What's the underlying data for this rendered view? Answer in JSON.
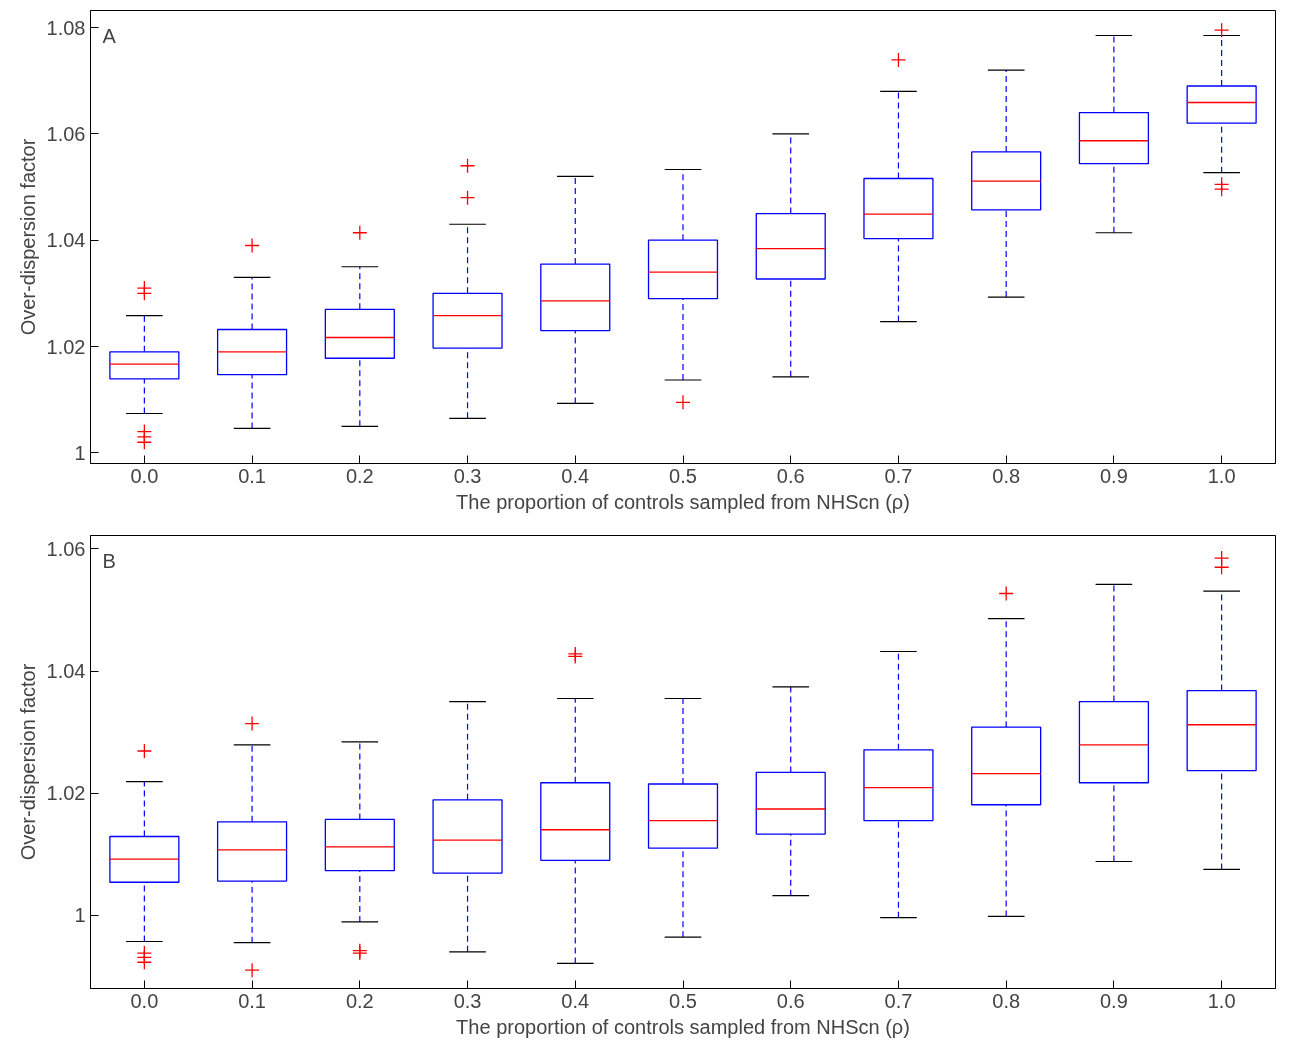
{
  "chart_data": [
    {
      "type": "box",
      "annotations": [
        "A"
      ],
      "xlabel": "The proportion of controls sampled from NHScn (ρ)",
      "ylabel": "Over-dispersion factor",
      "marker": "cross",
      "categories": [
        "0.0",
        "0.1",
        "0.2",
        "0.3",
        "0.4",
        "0.5",
        "0.6",
        "0.7",
        "0.8",
        "0.9",
        "1.0"
      ],
      "ylim": [
        0.998,
        1.0832
      ],
      "yticks": [
        1,
        1.02,
        1.04,
        1.06,
        1.08
      ],
      "boxes": [
        {
          "low": 1.0074,
          "q1": 1.0139,
          "median": 1.0167,
          "q3": 1.019,
          "high": 1.0258,
          "outliers": [
            1.031,
            1.03,
            1.004,
            1.003,
            1.002
          ]
        },
        {
          "low": 1.0046,
          "q1": 1.0147,
          "median": 1.019,
          "q3": 1.0232,
          "high": 1.033,
          "outliers": [
            1.039
          ]
        },
        {
          "low": 1.005,
          "q1": 1.0178,
          "median": 1.0217,
          "q3": 1.027,
          "high": 1.035,
          "outliers": [
            1.0414
          ]
        },
        {
          "low": 1.0065,
          "q1": 1.0197,
          "median": 1.0258,
          "q3": 1.03,
          "high": 1.043,
          "outliers": [
            1.054,
            1.048
          ]
        },
        {
          "low": 1.0093,
          "q1": 1.023,
          "median": 1.0286,
          "q3": 1.0355,
          "high": 1.052
        },
        {
          "low": 1.0137,
          "q1": 1.029,
          "median": 1.034,
          "q3": 1.04,
          "high": 1.0533,
          "outliers": [
            1.0095
          ]
        },
        {
          "low": 1.0143,
          "q1": 1.0327,
          "median": 1.0384,
          "q3": 1.045,
          "high": 1.06
        },
        {
          "low": 1.0247,
          "q1": 1.0403,
          "median": 1.0449,
          "q3": 1.0516,
          "high": 1.068,
          "outliers": [
            1.0739
          ]
        },
        {
          "low": 1.0293,
          "q1": 1.0457,
          "median": 1.0511,
          "q3": 1.0566,
          "high": 1.072
        },
        {
          "low": 1.0414,
          "q1": 1.0544,
          "median": 1.0587,
          "q3": 1.064,
          "high": 1.0785
        },
        {
          "low": 1.0527,
          "q1": 1.062,
          "median": 1.0659,
          "q3": 1.069,
          "high": 1.0785,
          "outliers": [
            1.0795,
            1.0505,
            1.0496
          ]
        }
      ]
    },
    {
      "type": "box",
      "annotations": [
        "B"
      ],
      "xlabel": "The proportion of controls sampled from NHScn (ρ)",
      "ylabel": "Over-dispersion factor",
      "marker": "cross",
      "categories": [
        "0.0",
        "0.1",
        "0.2",
        "0.3",
        "0.4",
        "0.5",
        "0.6",
        "0.7",
        "0.8",
        "0.9",
        "1.0"
      ],
      "ylim": [
        0.988,
        1.0622
      ],
      "yticks": [
        1,
        1.02,
        1.04,
        1.06
      ],
      "boxes": [
        {
          "low": 0.9957,
          "q1": 1.0054,
          "median": 1.0092,
          "q3": 1.0129,
          "high": 1.0219,
          "outliers": [
            1.0269,
            0.9938,
            0.9931,
            0.9923
          ]
        },
        {
          "low": 0.9955,
          "q1": 1.0056,
          "median": 1.0107,
          "q3": 1.0153,
          "high": 1.0279,
          "outliers": [
            1.0314,
            0.991
          ]
        },
        {
          "low": 0.9989,
          "q1": 1.0073,
          "median": 1.0112,
          "q3": 1.0157,
          "high": 1.0284,
          "outliers": [
            0.9942,
            0.9938
          ]
        },
        {
          "low": 0.994,
          "q1": 1.0069,
          "median": 1.0123,
          "q3": 1.0189,
          "high": 1.035
        },
        {
          "low": 0.9921,
          "q1": 1.009,
          "median": 1.014,
          "q3": 1.0217,
          "high": 1.0355,
          "outliers": [
            1.0428,
            1.0424
          ]
        },
        {
          "low": 0.9964,
          "q1": 1.011,
          "median": 1.0155,
          "q3": 1.0215,
          "high": 1.0355
        },
        {
          "low": 1.0032,
          "q1": 1.0133,
          "median": 1.0174,
          "q3": 1.0234,
          "high": 1.0374
        },
        {
          "low": 0.9996,
          "q1": 1.0155,
          "median": 1.0209,
          "q3": 1.0271,
          "high": 1.0432
        },
        {
          "low": 0.9998,
          "q1": 1.0181,
          "median": 1.0232,
          "q3": 1.0308,
          "high": 1.0486,
          "outliers": [
            1.0527
          ]
        },
        {
          "low": 1.0088,
          "q1": 1.0217,
          "median": 1.0279,
          "q3": 1.035,
          "high": 1.0542
        },
        {
          "low": 1.0075,
          "q1": 1.0237,
          "median": 1.0312,
          "q3": 1.0368,
          "high": 1.0531,
          "outliers": [
            1.0585,
            1.057
          ]
        }
      ]
    }
  ]
}
